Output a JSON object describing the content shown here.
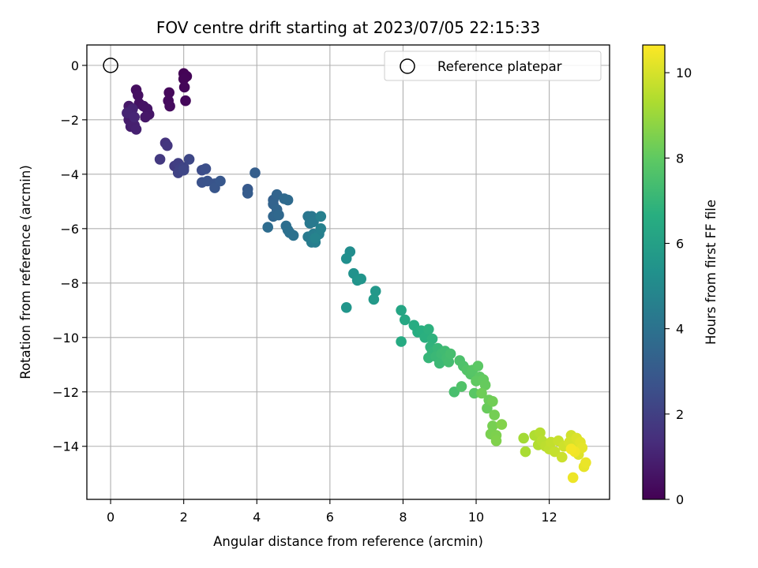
{
  "chart_data": {
    "type": "scatter",
    "title": "FOV centre drift starting at 2023/07/05 22:15:33",
    "xlabel": "Angular distance from reference (arcmin)",
    "ylabel": "Rotation from reference (arcmin)",
    "xlim": [
      -0.65,
      13.65
    ],
    "ylim": [
      -15.95,
      0.75
    ],
    "xticks": [
      0,
      2,
      4,
      6,
      8,
      10,
      12
    ],
    "yticks": [
      0,
      -2,
      -4,
      -6,
      -8,
      -10,
      -12,
      -14
    ],
    "xtick_labels": [
      "0",
      "2",
      "4",
      "6",
      "8",
      "10",
      "12"
    ],
    "ytick_labels": [
      "0",
      "−2",
      "−4",
      "−6",
      "−8",
      "−10",
      "−12",
      "−14"
    ],
    "grid": true,
    "colormap": "viridis",
    "colorbar": {
      "label": "Hours from first FF file",
      "range": [
        0,
        10.65
      ],
      "ticks": [
        0,
        2,
        4,
        6,
        8,
        10
      ],
      "tick_labels": [
        "0",
        "2",
        "4",
        "6",
        "8",
        "10"
      ]
    },
    "legend": {
      "position": "top-right",
      "entries": [
        "Reference platepar"
      ]
    },
    "reference_point": {
      "x": 0,
      "y": 0,
      "marker": "open-circle"
    },
    "points": [
      [
        2.0,
        -0.3,
        0.05
      ],
      [
        2.08,
        -0.4,
        0.1
      ],
      [
        2.0,
        -0.5,
        0.12
      ],
      [
        2.02,
        -0.8,
        0.15
      ],
      [
        2.05,
        -1.3,
        0.2
      ],
      [
        1.6,
        -1.0,
        0.25
      ],
      [
        1.58,
        -1.3,
        0.3
      ],
      [
        1.62,
        -1.5,
        0.35
      ],
      [
        0.7,
        -0.9,
        0.4
      ],
      [
        0.75,
        -1.1,
        0.45
      ],
      [
        0.78,
        -1.4,
        0.5
      ],
      [
        0.9,
        -1.5,
        0.55
      ],
      [
        1.0,
        -1.6,
        0.6
      ],
      [
        1.05,
        -1.8,
        0.65
      ],
      [
        0.95,
        -1.9,
        0.7
      ],
      [
        0.5,
        -1.5,
        0.75
      ],
      [
        0.5,
        -1.8,
        0.8
      ],
      [
        0.5,
        -2.0,
        0.85
      ],
      [
        0.55,
        -2.25,
        0.9
      ],
      [
        0.65,
        -2.2,
        0.95
      ],
      [
        0.7,
        -2.35,
        1.0
      ],
      [
        0.6,
        -1.6,
        1.05
      ],
      [
        0.45,
        -1.75,
        1.1
      ],
      [
        0.65,
        -1.9,
        1.15
      ],
      [
        1.5,
        -2.85,
        1.6
      ],
      [
        1.55,
        -2.95,
        1.7
      ],
      [
        1.35,
        -3.45,
        1.8
      ],
      [
        1.75,
        -3.7,
        1.9
      ],
      [
        1.85,
        -3.6,
        2.0
      ],
      [
        1.9,
        -3.8,
        2.1
      ],
      [
        1.85,
        -3.95,
        2.15
      ],
      [
        2.0,
        -3.75,
        2.2
      ],
      [
        2.0,
        -3.85,
        2.25
      ],
      [
        2.15,
        -3.45,
        2.3
      ],
      [
        2.5,
        -3.85,
        2.5
      ],
      [
        2.6,
        -3.8,
        2.6
      ],
      [
        2.5,
        -4.3,
        2.7
      ],
      [
        2.65,
        -4.25,
        2.75
      ],
      [
        2.85,
        -4.35,
        2.8
      ],
      [
        2.85,
        -4.5,
        2.85
      ],
      [
        3.0,
        -4.25,
        2.9
      ],
      [
        3.75,
        -4.55,
        3.0
      ],
      [
        3.75,
        -4.7,
        3.1
      ],
      [
        3.95,
        -3.95,
        3.2
      ],
      [
        4.45,
        -4.95,
        3.3
      ],
      [
        4.45,
        -5.1,
        3.4
      ],
      [
        4.55,
        -4.75,
        3.45
      ],
      [
        4.55,
        -5.3,
        3.5
      ],
      [
        4.45,
        -5.55,
        3.55
      ],
      [
        4.6,
        -5.5,
        3.6
      ],
      [
        4.75,
        -4.9,
        3.65
      ],
      [
        4.85,
        -4.95,
        3.7
      ],
      [
        4.3,
        -5.95,
        3.8
      ],
      [
        4.8,
        -5.9,
        3.85
      ],
      [
        4.85,
        -6.05,
        3.9
      ],
      [
        4.9,
        -6.15,
        3.95
      ],
      [
        5.0,
        -6.25,
        4.0
      ],
      [
        5.4,
        -5.55,
        4.2
      ],
      [
        5.5,
        -5.55,
        4.25
      ],
      [
        5.45,
        -5.8,
        4.3
      ],
      [
        5.55,
        -5.75,
        4.35
      ],
      [
        5.4,
        -6.3,
        4.4
      ],
      [
        5.5,
        -6.5,
        4.45
      ],
      [
        5.55,
        -6.2,
        4.5
      ],
      [
        5.6,
        -6.5,
        4.55
      ],
      [
        5.7,
        -6.2,
        4.6
      ],
      [
        5.75,
        -5.55,
        4.65
      ],
      [
        5.75,
        -6.0,
        4.7
      ],
      [
        5.6,
        -6.35,
        4.75
      ],
      [
        6.55,
        -6.85,
        5.2
      ],
      [
        6.45,
        -7.1,
        5.3
      ],
      [
        6.65,
        -7.65,
        5.4
      ],
      [
        6.75,
        -7.9,
        5.5
      ],
      [
        6.85,
        -7.85,
        5.55
      ],
      [
        6.45,
        -8.9,
        5.6
      ],
      [
        7.25,
        -8.3,
        5.7
      ],
      [
        7.2,
        -8.6,
        5.75
      ],
      [
        7.95,
        -9.0,
        6.3
      ],
      [
        8.05,
        -9.35,
        6.4
      ],
      [
        7.95,
        -10.15,
        6.5
      ],
      [
        8.3,
        -9.55,
        6.6
      ],
      [
        8.4,
        -9.8,
        6.65
      ],
      [
        8.5,
        -9.75,
        6.7
      ],
      [
        8.6,
        -10.0,
        6.75
      ],
      [
        8.7,
        -9.7,
        6.8
      ],
      [
        8.8,
        -10.05,
        6.85
      ],
      [
        8.75,
        -10.35,
        6.9
      ],
      [
        8.8,
        -10.55,
        7.0
      ],
      [
        8.7,
        -10.75,
        7.05
      ],
      [
        8.95,
        -10.4,
        7.1
      ],
      [
        8.9,
        -10.7,
        7.15
      ],
      [
        9.0,
        -10.95,
        7.2
      ],
      [
        9.05,
        -10.6,
        7.25
      ],
      [
        9.15,
        -10.5,
        7.3
      ],
      [
        9.2,
        -10.75,
        7.35
      ],
      [
        9.25,
        -10.9,
        7.4
      ],
      [
        9.3,
        -10.6,
        7.45
      ],
      [
        9.4,
        -12.0,
        7.5
      ],
      [
        9.55,
        -10.85,
        7.6
      ],
      [
        9.65,
        -11.05,
        7.65
      ],
      [
        9.6,
        -11.8,
        7.7
      ],
      [
        9.75,
        -11.2,
        7.75
      ],
      [
        9.85,
        -11.35,
        7.8
      ],
      [
        9.9,
        -11.2,
        7.85
      ],
      [
        9.95,
        -12.05,
        7.9
      ],
      [
        10.05,
        -11.05,
        7.95
      ],
      [
        10.1,
        -11.45,
        8.0
      ],
      [
        10.0,
        -11.6,
        8.05
      ],
      [
        10.2,
        -11.55,
        8.1
      ],
      [
        10.25,
        -11.75,
        8.15
      ],
      [
        10.3,
        -12.6,
        8.2
      ],
      [
        10.35,
        -12.3,
        8.25
      ],
      [
        10.15,
        -12.05,
        8.3
      ],
      [
        10.45,
        -12.35,
        8.35
      ],
      [
        10.5,
        -12.85,
        8.4
      ],
      [
        10.45,
        -13.25,
        8.45
      ],
      [
        10.4,
        -13.55,
        8.5
      ],
      [
        10.55,
        -13.6,
        8.55
      ],
      [
        10.55,
        -13.8,
        8.6
      ],
      [
        10.7,
        -13.2,
        8.65
      ],
      [
        11.3,
        -13.7,
        9.2
      ],
      [
        11.35,
        -14.2,
        9.3
      ],
      [
        11.6,
        -13.6,
        9.4
      ],
      [
        11.7,
        -13.95,
        9.45
      ],
      [
        11.75,
        -13.5,
        9.5
      ],
      [
        11.8,
        -13.8,
        9.55
      ],
      [
        11.9,
        -14.0,
        9.6
      ],
      [
        12.0,
        -14.1,
        9.65
      ],
      [
        12.05,
        -13.85,
        9.7
      ],
      [
        12.15,
        -14.2,
        9.75
      ],
      [
        12.25,
        -13.8,
        9.8
      ],
      [
        12.35,
        -14.4,
        9.85
      ],
      [
        12.4,
        -14.0,
        9.9
      ],
      [
        12.6,
        -13.6,
        9.95
      ],
      [
        12.55,
        -13.85,
        10.0
      ],
      [
        12.7,
        -14.05,
        10.05
      ],
      [
        12.75,
        -13.7,
        10.1
      ],
      [
        12.8,
        -14.3,
        10.15
      ],
      [
        12.85,
        -13.85,
        10.2
      ],
      [
        12.9,
        -14.05,
        10.25
      ],
      [
        12.95,
        -14.75,
        10.3
      ],
      [
        13.0,
        -14.6,
        10.35
      ],
      [
        12.65,
        -15.15,
        10.4
      ],
      [
        12.7,
        -14.2,
        10.45
      ],
      [
        12.6,
        -14.1,
        10.5
      ]
    ]
  }
}
